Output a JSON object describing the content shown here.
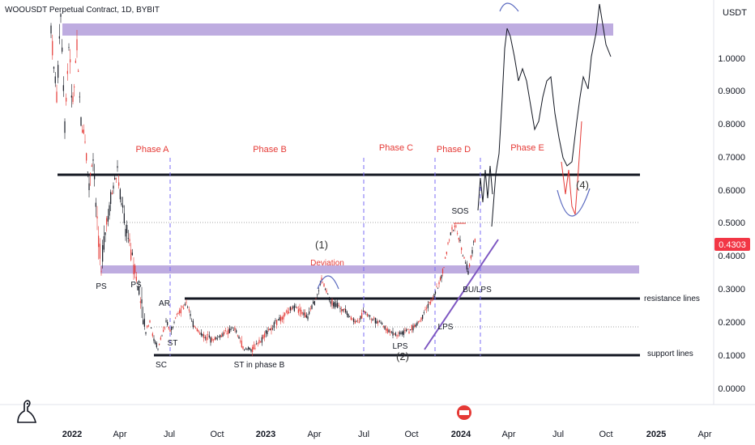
{
  "header": {
    "title": "WOOUSDT Perpetual Contract, 1D, BYBIT",
    "currency": "USDT"
  },
  "price_axis": {
    "ticks": [
      "1.0000",
      "0.9000",
      "0.8000",
      "0.7000",
      "0.6000",
      "0.5000",
      "0.4000",
      "0.3000",
      "0.2000",
      "0.1000",
      "0.0000"
    ],
    "current_price": "0.4303",
    "current_price_color": "#f23645"
  },
  "time_axis": {
    "ticks": [
      "2022",
      "Apr",
      "Jul",
      "Oct",
      "2023",
      "Apr",
      "Jul",
      "Oct",
      "2024",
      "Apr",
      "Jul",
      "Oct",
      "2025",
      "Apr"
    ]
  },
  "phases": [
    "Phase A",
    "Phase B",
    "Phase C",
    "Phase D",
    "Phase E"
  ],
  "labels": {
    "ps1": "PS",
    "ps2": "PS",
    "sc": "SC",
    "ar": "AR",
    "st": "ST",
    "st_phase_b": "ST in phase B",
    "deviation": "Deviation",
    "one": "(1)",
    "two": "(2)",
    "four": "(4)",
    "lps1": "LPS",
    "lps2": "LPS",
    "sos": "SOS",
    "bu_lps": "BU/LPS",
    "resistance": "resistance lines",
    "support": "support lines"
  },
  "colors": {
    "up": "#131722",
    "down": "#e53935",
    "zone": "#b39ddb",
    "phase_divider": "#7b6cf6",
    "accent_purple": "#7e57c2"
  },
  "chart_data": {
    "type": "candlestick",
    "title": "WOOUSDT Perpetual Contract, 1D, BYBIT",
    "yaxis_unit": "USDT",
    "ylim": [
      -0.05,
      1.15
    ],
    "key_levels": [
      {
        "name": "upper zone",
        "value": 1.08
      },
      {
        "name": "black horizontal",
        "value": 0.645
      },
      {
        "name": "purple zone",
        "value": 0.355
      },
      {
        "name": "resistance lines",
        "value": 0.27
      },
      {
        "name": "support lines",
        "value": 0.1
      }
    ],
    "current_price": 0.4303
  }
}
